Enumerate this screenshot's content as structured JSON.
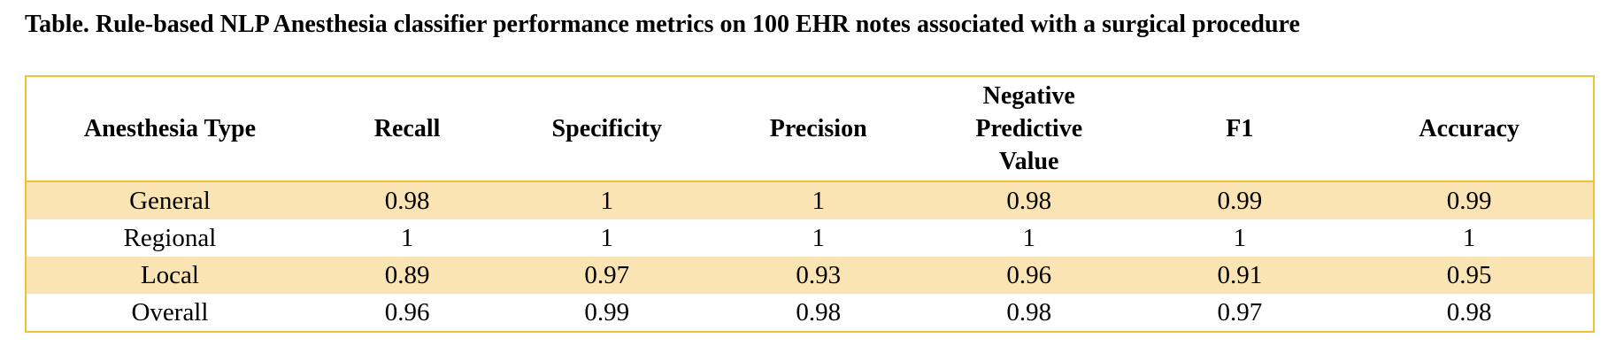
{
  "caption": "Table. Rule-based NLP Anesthesia classifier performance metrics on 100 EHR notes associated with a surgical procedure",
  "colors": {
    "border": "#f2c037",
    "band": "#fbe4b4"
  },
  "table": {
    "headers": [
      "Anesthesia Type",
      "Recall",
      "Specificity",
      "Precision",
      [
        "Negative",
        "Predictive",
        "Value"
      ],
      "F1",
      "Accuracy"
    ],
    "rows": [
      [
        "General",
        "0.98",
        "1",
        "1",
        "0.98",
        "0.99",
        "0.99"
      ],
      [
        "Regional",
        "1",
        "1",
        "1",
        "1",
        "1",
        "1"
      ],
      [
        "Local",
        "0.89",
        "0.97",
        "0.93",
        "0.96",
        "0.91",
        "0.95"
      ],
      [
        "Overall",
        "0.96",
        "0.99",
        "0.98",
        "0.98",
        "0.97",
        "0.98"
      ]
    ]
  }
}
